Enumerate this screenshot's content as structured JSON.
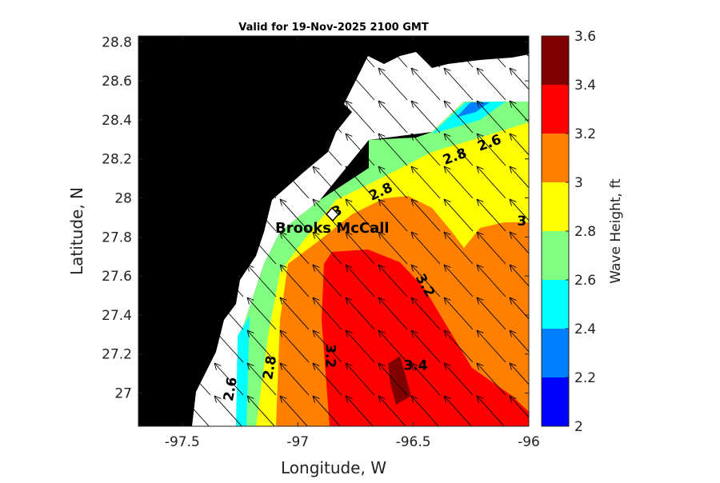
{
  "chart_data": {
    "type": "heatmap",
    "subtype": "filled-contour map with wave direction arrows",
    "title": "Valid for 19-Nov-2025 2100 GMT",
    "xlabel": "Longitude, W",
    "ylabel": "Latitude, N",
    "xlim": [
      -97.69,
      -96.0
    ],
    "ylim": [
      26.83,
      28.83
    ],
    "xticks": [
      -97.5,
      -97,
      -96.5,
      -96
    ],
    "xtick_labels": [
      "-97.5",
      "-97",
      "-96.5",
      "-96"
    ],
    "yticks": [
      27,
      27.2,
      27.4,
      27.6,
      27.8,
      28,
      28.2,
      28.4,
      28.6,
      28.8
    ],
    "ytick_labels": [
      "27",
      "27.2",
      "27.4",
      "27.6",
      "27.8",
      "28",
      "28.2",
      "28.4",
      "28.6",
      "28.8"
    ],
    "colorbar": {
      "label": "Wave Height, ft",
      "range": [
        2,
        3.6
      ],
      "levels": [
        2,
        2.2,
        2.4,
        2.6,
        2.8,
        3,
        3.2,
        3.4,
        3.6
      ],
      "tick_labels": [
        "2",
        "2.2",
        "2.4",
        "2.6",
        "2.8",
        "3",
        "3.2",
        "3.4",
        "3.6"
      ],
      "colors": [
        "#0000ff",
        "#0080ff",
        "#00ffff",
        "#80ff80",
        "#ffff00",
        "#ff8000",
        "#ff0000",
        "#800000"
      ]
    },
    "contour_labels": [
      {
        "text": "2.6",
        "lon": -96.17,
        "lat": 28.28
      },
      {
        "text": "2.8",
        "lon": -96.32,
        "lat": 28.21
      },
      {
        "text": "2.8",
        "lon": -96.64,
        "lat": 28.03
      },
      {
        "text": "3",
        "lon": -96.83,
        "lat": 27.93
      },
      {
        "text": "3",
        "lon": -96.03,
        "lat": 27.88
      },
      {
        "text": "3.2",
        "lon": -96.45,
        "lat": 27.55
      },
      {
        "text": "3.2",
        "lon": -96.86,
        "lat": 27.19
      },
      {
        "text": "3.4",
        "lon": -96.49,
        "lat": 27.14
      },
      {
        "text": "2.8",
        "lon": -97.12,
        "lat": 27.13
      },
      {
        "text": "2.6",
        "lon": -97.29,
        "lat": 27.02
      }
    ],
    "station": {
      "name": "Brooks McCall",
      "lon": -96.86,
      "lat": 27.91
    },
    "wave_direction": "arrows point toward northwest (waves from southeast)"
  }
}
